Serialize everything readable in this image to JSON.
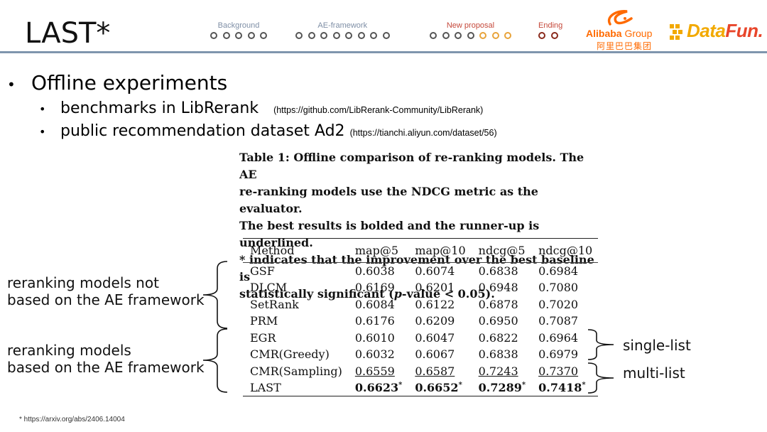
{
  "slide": {
    "title": "LAST*",
    "nav": [
      {
        "label": "Background",
        "dots": 5,
        "active_dots": 0
      },
      {
        "label": "AE-framework",
        "dots": 8,
        "active_dots": 0
      },
      {
        "label": "New proposal",
        "dots": 7,
        "active_dots": 3
      },
      {
        "label": "Ending",
        "dots": 2,
        "active_dots": 0
      }
    ],
    "logos": {
      "alibaba_brand": "Alibaba",
      "alibaba_group": " Group",
      "alibaba_cn": "阿里巴巴集团",
      "datafun_data": "Data",
      "datafun_fun": "Fun."
    }
  },
  "bullets": {
    "main": "Offline experiments",
    "sub1_text": "benchmarks in LibRerank",
    "sub1_url": "(https://github.com/LibRerank-Community/LibRerank)",
    "sub2_text": "public recommendation dataset Ad2",
    "sub2_url": "(https://tianchi.aliyun.com/dataset/56)"
  },
  "caption": {
    "line1": "Table 1: Offline comparison of re-ranking models. The AE",
    "line2": "re-ranking models use the NDCG metric as the evaluator.",
    "line3": "The best results is bolded and the runner-up is underlined.",
    "line4": "* indicates that the improvement over the best baseline is",
    "line5_pre": "statistically significant (",
    "line5_p": "p",
    "line5_post": "-value < 0.05)."
  },
  "table": {
    "headers": [
      "Method",
      "map@5",
      "map@10",
      "ndcg@5",
      "ndcg@10"
    ],
    "rows": [
      [
        "GSF",
        "0.6038",
        "0.6074",
        "0.6838",
        "0.6984"
      ],
      [
        "DLCM",
        "0.6169",
        "0.6201",
        "0.6948",
        "0.7080"
      ],
      [
        "SetRank",
        "0.6084",
        "0.6122",
        "0.6878",
        "0.7020"
      ],
      [
        "PRM",
        "0.6176",
        "0.6209",
        "0.6950",
        "0.7087"
      ],
      [
        "EGR",
        "0.6010",
        "0.6047",
        "0.6822",
        "0.6964"
      ],
      [
        "CMR(Greedy)",
        "0.6032",
        "0.6067",
        "0.6838",
        "0.6979"
      ],
      [
        "CMR(Sampling)",
        "0.6559",
        "0.6587",
        "0.7243",
        "0.7370"
      ],
      [
        "LAST",
        "0.6623",
        "0.6652",
        "0.7289",
        "0.7418"
      ]
    ],
    "star": "*"
  },
  "annotations": {
    "left_top_1": "reranking models not",
    "left_top_2": "based on the AE framework",
    "left_bottom_1": "reranking models",
    "left_bottom_2": "based on the AE framework",
    "right_top": "single-list",
    "right_bottom": "multi-list"
  },
  "footnote": "* https://arxiv.org/abs/2406.14004",
  "colors": {
    "header_rule": "#7f95ad",
    "nav_active": "#c5483a",
    "dot_active": "#e8a33a",
    "alibaba_orange": "#ff6a00",
    "datafun_yellow": "#f2a900",
    "datafun_red": "#e8452a"
  }
}
